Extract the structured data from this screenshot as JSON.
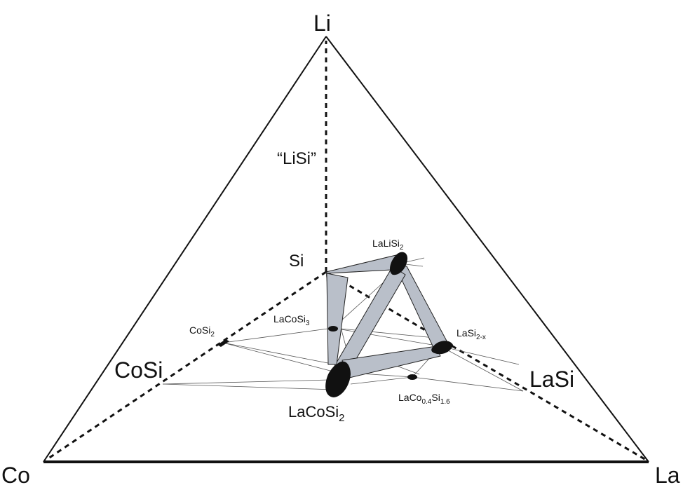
{
  "corners": {
    "top": "Li",
    "bottom_left": "Co",
    "bottom_right": "La"
  },
  "axis_points": {
    "li_si": "“LiSi”",
    "si": "Si",
    "co_si": "CoSi",
    "la_si": "LaSi"
  },
  "phases": {
    "co_si2": {
      "base": "CoSi",
      "sub": "2"
    },
    "la_co_si3": {
      "base": "LaCoSi",
      "sub": "3"
    },
    "la_li_si2": {
      "base": "LaLiSi",
      "sub": "2"
    },
    "la_si2x": {
      "base": "LaSi",
      "sub": "2-x"
    },
    "la_co_si2": {
      "base": "LaCoSi",
      "sub": "2"
    },
    "la_co04_si16": {
      "p1": "LaCo",
      "s1": "0.4",
      "p2": "Si",
      "s2": "1.6"
    }
  },
  "colors": {
    "region_fill": "#b9bfc9",
    "phase_fill": "#111111",
    "lines": "#111111"
  }
}
